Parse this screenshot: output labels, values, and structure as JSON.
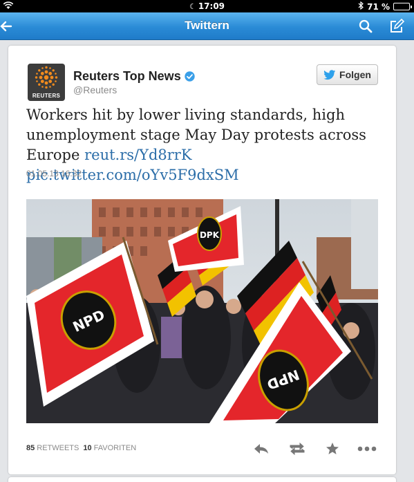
{
  "status_bar": {
    "time": "17:09",
    "battery": "71 %",
    "battery_level": 0.71,
    "icons": [
      "wifi-icon",
      "moon-icon",
      "bluetooth-icon",
      "battery-icon"
    ]
  },
  "nav": {
    "title": "Twittern",
    "icons": [
      "back-arrow-icon",
      "search-icon",
      "compose-icon"
    ],
    "bar_color": "#2a8bd6"
  },
  "tweet": {
    "author_name": "Reuters Top News",
    "handle": "@Reuters",
    "avatar_brand": "REUTERS",
    "follow_label": "Folgen",
    "text": "Workers hit by lower living standards, high unemployment stage May Day protests across Europe",
    "link_1": "reut.rs/Yd8rrK",
    "link_2": "pic.twitter.com/oYv5F9dxSM",
    "timestamp": "01.05.13 16:32",
    "link_color": "#2b6da8"
  },
  "photo": {
    "flag_labels": [
      "NPD",
      "DPK",
      "NPD"
    ]
  },
  "stats": {
    "retweets_count": "85",
    "retweets_label": "RETWEETS",
    "favorites_count": "10",
    "favorites_label": "FAVORITEN"
  },
  "actions": [
    "reply-icon",
    "retweet-icon",
    "favorite-star-icon",
    "more-icon"
  ]
}
